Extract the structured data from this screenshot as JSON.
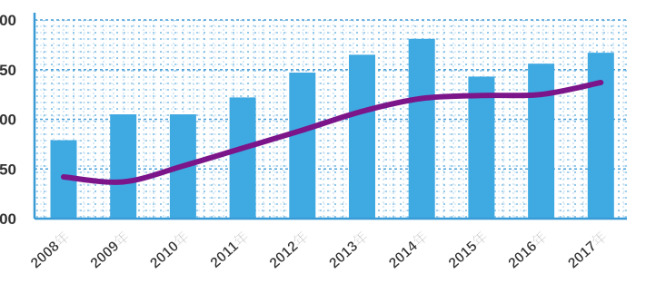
{
  "chart_data": {
    "type": "bar",
    "categories": [
      "2008年",
      "2009年",
      "2010年",
      "2011年",
      "2012年",
      "2013年",
      "2014年",
      "2015年",
      "2016年",
      "2017年"
    ],
    "series": [
      {
        "kind": "bar",
        "values": [
          154,
          180,
          180,
          197,
          222,
          240,
          256,
          218,
          231,
          242
        ]
      },
      {
        "kind": "line",
        "values": [
          117,
          112,
          128,
          146,
          164,
          183,
          196,
          199,
          200,
          212
        ]
      }
    ],
    "y_tick_labels": [
      "00",
      "50",
      "00",
      "50",
      "00"
    ],
    "ylim": [
      75,
      275
    ],
    "grid": true,
    "colors": {
      "bar": "#3fa9e2",
      "line": "#7b1589",
      "grid": "#4a9fd8",
      "axis": "#3b9bd6",
      "tick_text": "#333333"
    }
  }
}
